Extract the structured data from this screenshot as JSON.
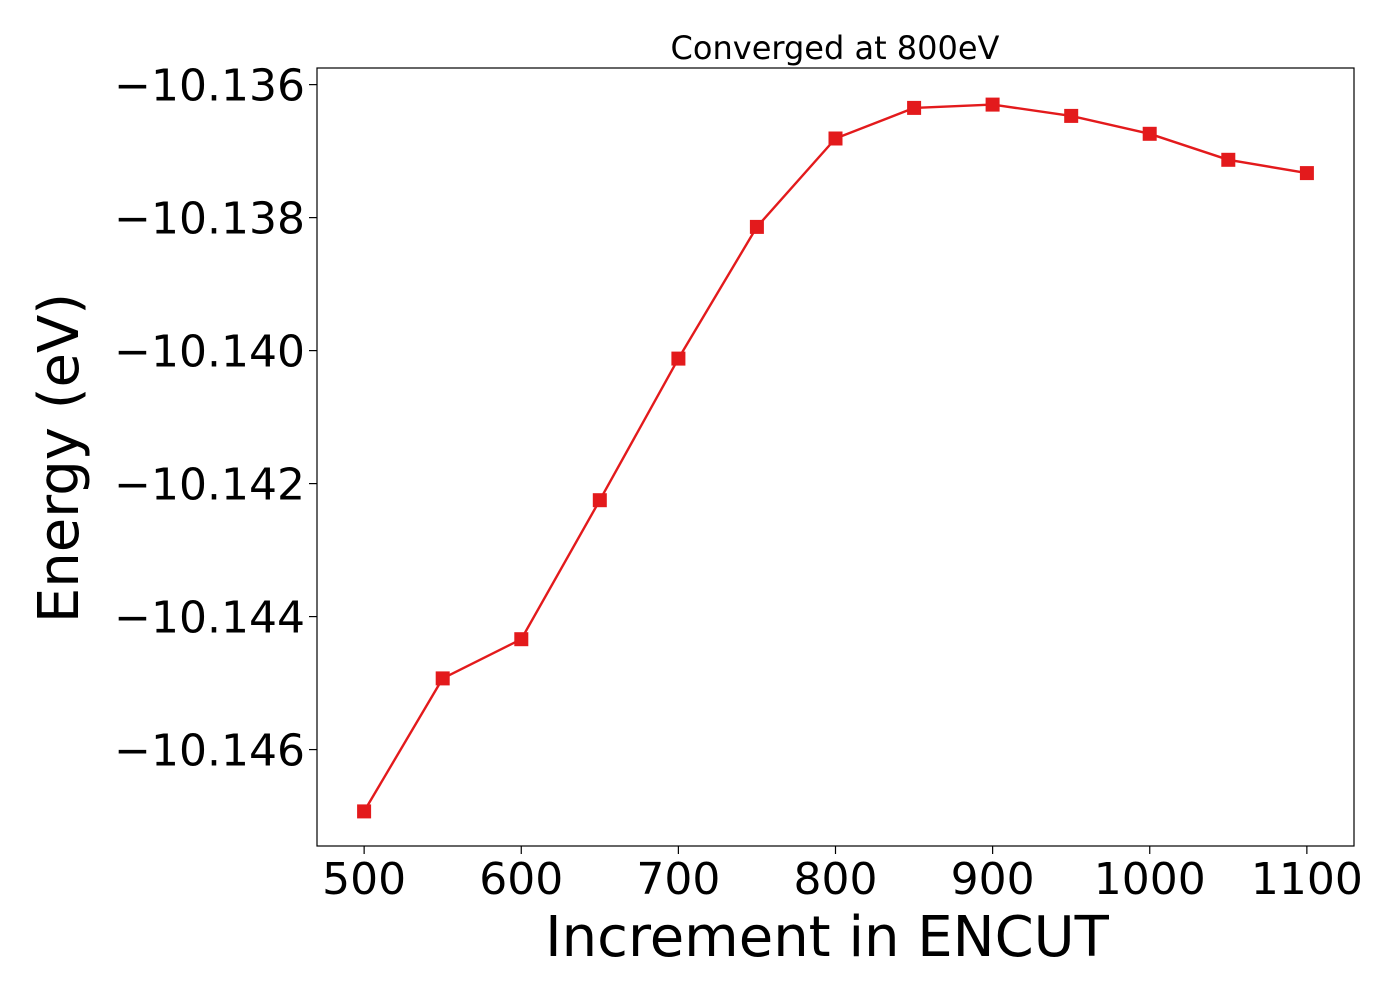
{
  "chart_data": {
    "type": "line",
    "title": "Converged at 800eV",
    "xlabel": "Increment in ENCUT",
    "ylabel": "Energy (eV)",
    "xlim": [
      470,
      1130
    ],
    "ylim": [
      -10.14745,
      -10.13575
    ],
    "xticks": [
      500,
      600,
      700,
      800,
      900,
      1000,
      1100
    ],
    "yticks": [
      -10.146,
      -10.144,
      -10.142,
      -10.14,
      -10.138,
      -10.136
    ],
    "ytick_labels": [
      "−10.146",
      "−10.144",
      "−10.142",
      "−10.140",
      "−10.138",
      "−10.136"
    ],
    "grid": false,
    "marker": "square",
    "color": "#e31a1c",
    "x": [
      500,
      550,
      600,
      650,
      700,
      750,
      800,
      850,
      900,
      950,
      1000,
      1050,
      1100
    ],
    "y": [
      -10.14693,
      -10.14493,
      -10.14434,
      -10.14225,
      -10.14012,
      -10.13814,
      -10.13681,
      -10.13635,
      -10.1363,
      -10.13647,
      -10.13674,
      -10.13713,
      -10.13733
    ]
  }
}
